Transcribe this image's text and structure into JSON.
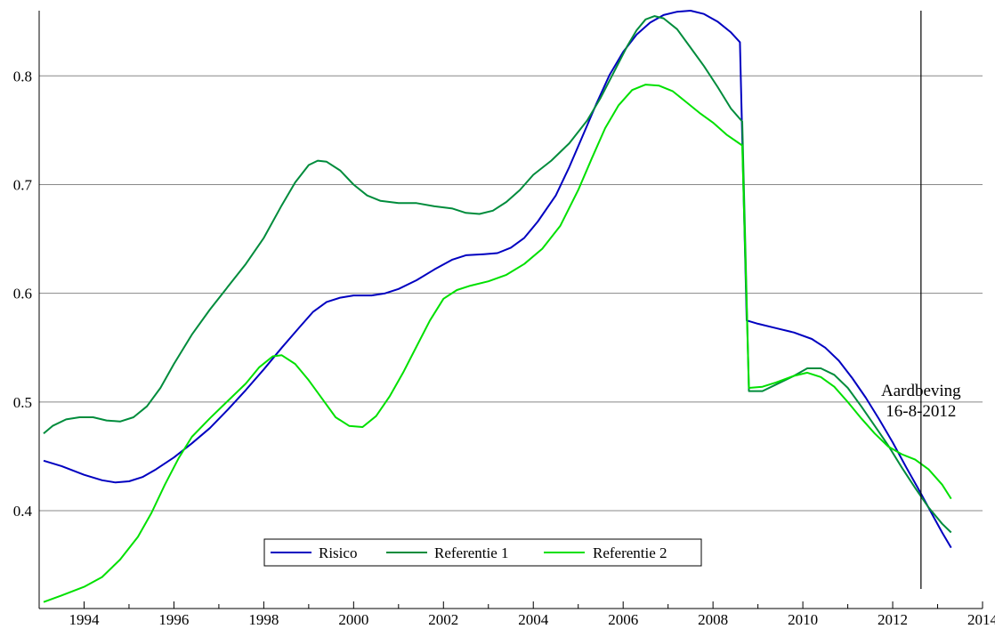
{
  "chart_data": {
    "type": "line",
    "title": "",
    "xlabel": "",
    "ylabel": "",
    "xlim": [
      1993,
      2014
    ],
    "ylim": [
      0.31,
      0.86
    ],
    "x_ticks": [
      1994,
      1996,
      1998,
      2000,
      2002,
      2004,
      2006,
      2008,
      2010,
      2012,
      2014
    ],
    "y_ticks": [
      0.4,
      0.5,
      0.6,
      0.7,
      0.8
    ],
    "y_tick_labels": [
      "0.4",
      "0.5",
      "0.6",
      "0.7",
      "0.8"
    ],
    "grid": "horizontal",
    "legend_position": "bottom-center",
    "series": [
      {
        "name": "Risico",
        "color": "#0000c0",
        "points": [
          [
            1993.1,
            0.446
          ],
          [
            1993.5,
            0.441
          ],
          [
            1994.0,
            0.433
          ],
          [
            1994.4,
            0.428
          ],
          [
            1994.7,
            0.426
          ],
          [
            1995.0,
            0.427
          ],
          [
            1995.3,
            0.431
          ],
          [
            1995.6,
            0.438
          ],
          [
            1996.0,
            0.449
          ],
          [
            1996.4,
            0.462
          ],
          [
            1996.8,
            0.476
          ],
          [
            1997.2,
            0.493
          ],
          [
            1997.6,
            0.511
          ],
          [
            1998.0,
            0.53
          ],
          [
            1998.4,
            0.55
          ],
          [
            1998.8,
            0.569
          ],
          [
            1999.1,
            0.583
          ],
          [
            1999.4,
            0.592
          ],
          [
            1999.7,
            0.596
          ],
          [
            2000.0,
            0.598
          ],
          [
            2000.4,
            0.598
          ],
          [
            2000.7,
            0.6
          ],
          [
            2001.0,
            0.604
          ],
          [
            2001.4,
            0.612
          ],
          [
            2001.8,
            0.622
          ],
          [
            2002.2,
            0.631
          ],
          [
            2002.5,
            0.635
          ],
          [
            2002.9,
            0.636
          ],
          [
            2003.2,
            0.637
          ],
          [
            2003.5,
            0.642
          ],
          [
            2003.8,
            0.651
          ],
          [
            2004.1,
            0.666
          ],
          [
            2004.5,
            0.69
          ],
          [
            2004.8,
            0.716
          ],
          [
            2005.1,
            0.745
          ],
          [
            2005.4,
            0.774
          ],
          [
            2005.7,
            0.801
          ],
          [
            2006.0,
            0.822
          ],
          [
            2006.3,
            0.838
          ],
          [
            2006.6,
            0.849
          ],
          [
            2006.9,
            0.856
          ],
          [
            2007.2,
            0.859
          ],
          [
            2007.5,
            0.86
          ],
          [
            2007.8,
            0.857
          ],
          [
            2008.1,
            0.85
          ],
          [
            2008.4,
            0.84
          ],
          [
            2008.6,
            0.831
          ],
          [
            2008.75,
            0.575
          ],
          [
            2009.0,
            0.572
          ],
          [
            2009.4,
            0.568
          ],
          [
            2009.8,
            0.564
          ],
          [
            2010.2,
            0.558
          ],
          [
            2010.5,
            0.55
          ],
          [
            2010.8,
            0.538
          ],
          [
            2011.1,
            0.522
          ],
          [
            2011.4,
            0.504
          ],
          [
            2011.7,
            0.484
          ],
          [
            2012.0,
            0.463
          ],
          [
            2012.3,
            0.44
          ],
          [
            2012.6,
            0.418
          ],
          [
            2012.9,
            0.395
          ],
          [
            2013.1,
            0.38
          ],
          [
            2013.3,
            0.366
          ]
        ]
      },
      {
        "name": "Referentie 1",
        "color": "#008c3c",
        "points": [
          [
            1993.1,
            0.471
          ],
          [
            1993.3,
            0.478
          ],
          [
            1993.6,
            0.484
          ],
          [
            1993.9,
            0.486
          ],
          [
            1994.2,
            0.486
          ],
          [
            1994.5,
            0.483
          ],
          [
            1994.8,
            0.482
          ],
          [
            1995.1,
            0.486
          ],
          [
            1995.4,
            0.496
          ],
          [
            1995.7,
            0.513
          ],
          [
            1996.0,
            0.535
          ],
          [
            1996.4,
            0.562
          ],
          [
            1996.8,
            0.585
          ],
          [
            1997.2,
            0.606
          ],
          [
            1997.6,
            0.627
          ],
          [
            1998.0,
            0.651
          ],
          [
            1998.4,
            0.681
          ],
          [
            1998.7,
            0.702
          ],
          [
            1999.0,
            0.718
          ],
          [
            1999.2,
            0.722
          ],
          [
            1999.4,
            0.721
          ],
          [
            1999.7,
            0.713
          ],
          [
            2000.0,
            0.7
          ],
          [
            2000.3,
            0.69
          ],
          [
            2000.6,
            0.685
          ],
          [
            2001.0,
            0.683
          ],
          [
            2001.4,
            0.683
          ],
          [
            2001.8,
            0.68
          ],
          [
            2002.2,
            0.678
          ],
          [
            2002.5,
            0.674
          ],
          [
            2002.8,
            0.673
          ],
          [
            2003.1,
            0.676
          ],
          [
            2003.4,
            0.684
          ],
          [
            2003.7,
            0.695
          ],
          [
            2004.0,
            0.709
          ],
          [
            2004.4,
            0.722
          ],
          [
            2004.8,
            0.738
          ],
          [
            2005.2,
            0.759
          ],
          [
            2005.5,
            0.78
          ],
          [
            2005.8,
            0.804
          ],
          [
            2006.1,
            0.828
          ],
          [
            2006.3,
            0.842
          ],
          [
            2006.5,
            0.852
          ],
          [
            2006.7,
            0.855
          ],
          [
            2006.9,
            0.853
          ],
          [
            2007.2,
            0.843
          ],
          [
            2007.5,
            0.826
          ],
          [
            2007.8,
            0.809
          ],
          [
            2008.1,
            0.79
          ],
          [
            2008.4,
            0.77
          ],
          [
            2008.65,
            0.758
          ],
          [
            2008.8,
            0.51
          ],
          [
            2009.1,
            0.51
          ],
          [
            2009.4,
            0.516
          ],
          [
            2009.8,
            0.524
          ],
          [
            2010.1,
            0.531
          ],
          [
            2010.4,
            0.531
          ],
          [
            2010.7,
            0.525
          ],
          [
            2011.0,
            0.513
          ],
          [
            2011.3,
            0.496
          ],
          [
            2011.6,
            0.478
          ],
          [
            2011.9,
            0.46
          ],
          [
            2012.2,
            0.44
          ],
          [
            2012.5,
            0.421
          ],
          [
            2012.8,
            0.403
          ],
          [
            2013.1,
            0.388
          ],
          [
            2013.3,
            0.38
          ]
        ]
      },
      {
        "name": "Referentie 2",
        "color": "#00e000",
        "points": [
          [
            1993.1,
            0.316
          ],
          [
            1993.5,
            0.322
          ],
          [
            1994.0,
            0.33
          ],
          [
            1994.4,
            0.339
          ],
          [
            1994.8,
            0.355
          ],
          [
            1995.2,
            0.376
          ],
          [
            1995.5,
            0.398
          ],
          [
            1995.8,
            0.424
          ],
          [
            1996.1,
            0.448
          ],
          [
            1996.4,
            0.468
          ],
          [
            1996.8,
            0.485
          ],
          [
            1997.2,
            0.501
          ],
          [
            1997.6,
            0.517
          ],
          [
            1997.9,
            0.532
          ],
          [
            1998.2,
            0.542
          ],
          [
            1998.4,
            0.543
          ],
          [
            1998.7,
            0.535
          ],
          [
            1999.0,
            0.52
          ],
          [
            1999.3,
            0.503
          ],
          [
            1999.6,
            0.486
          ],
          [
            1999.9,
            0.478
          ],
          [
            2000.2,
            0.477
          ],
          [
            2000.5,
            0.487
          ],
          [
            2000.8,
            0.505
          ],
          [
            2001.1,
            0.527
          ],
          [
            2001.4,
            0.551
          ],
          [
            2001.7,
            0.575
          ],
          [
            2002.0,
            0.595
          ],
          [
            2002.3,
            0.603
          ],
          [
            2002.6,
            0.607
          ],
          [
            2003.0,
            0.611
          ],
          [
            2003.4,
            0.617
          ],
          [
            2003.8,
            0.627
          ],
          [
            2004.2,
            0.641
          ],
          [
            2004.6,
            0.662
          ],
          [
            2005.0,
            0.695
          ],
          [
            2005.3,
            0.724
          ],
          [
            2005.6,
            0.752
          ],
          [
            2005.9,
            0.773
          ],
          [
            2006.2,
            0.787
          ],
          [
            2006.5,
            0.792
          ],
          [
            2006.8,
            0.791
          ],
          [
            2007.1,
            0.786
          ],
          [
            2007.4,
            0.776
          ],
          [
            2007.7,
            0.766
          ],
          [
            2008.0,
            0.757
          ],
          [
            2008.3,
            0.746
          ],
          [
            2008.65,
            0.736
          ],
          [
            2008.8,
            0.513
          ],
          [
            2009.1,
            0.514
          ],
          [
            2009.4,
            0.518
          ],
          [
            2009.8,
            0.524
          ],
          [
            2010.1,
            0.527
          ],
          [
            2010.4,
            0.523
          ],
          [
            2010.7,
            0.514
          ],
          [
            2011.0,
            0.5
          ],
          [
            2011.3,
            0.485
          ],
          [
            2011.6,
            0.471
          ],
          [
            2011.9,
            0.459
          ],
          [
            2012.2,
            0.452
          ],
          [
            2012.5,
            0.447
          ],
          [
            2012.8,
            0.438
          ],
          [
            2013.1,
            0.424
          ],
          [
            2013.3,
            0.411
          ]
        ]
      }
    ],
    "vertical_marker": {
      "x": 2012.63,
      "label_line1": "Aardbeving",
      "label_line2": "16-8-2012"
    }
  }
}
